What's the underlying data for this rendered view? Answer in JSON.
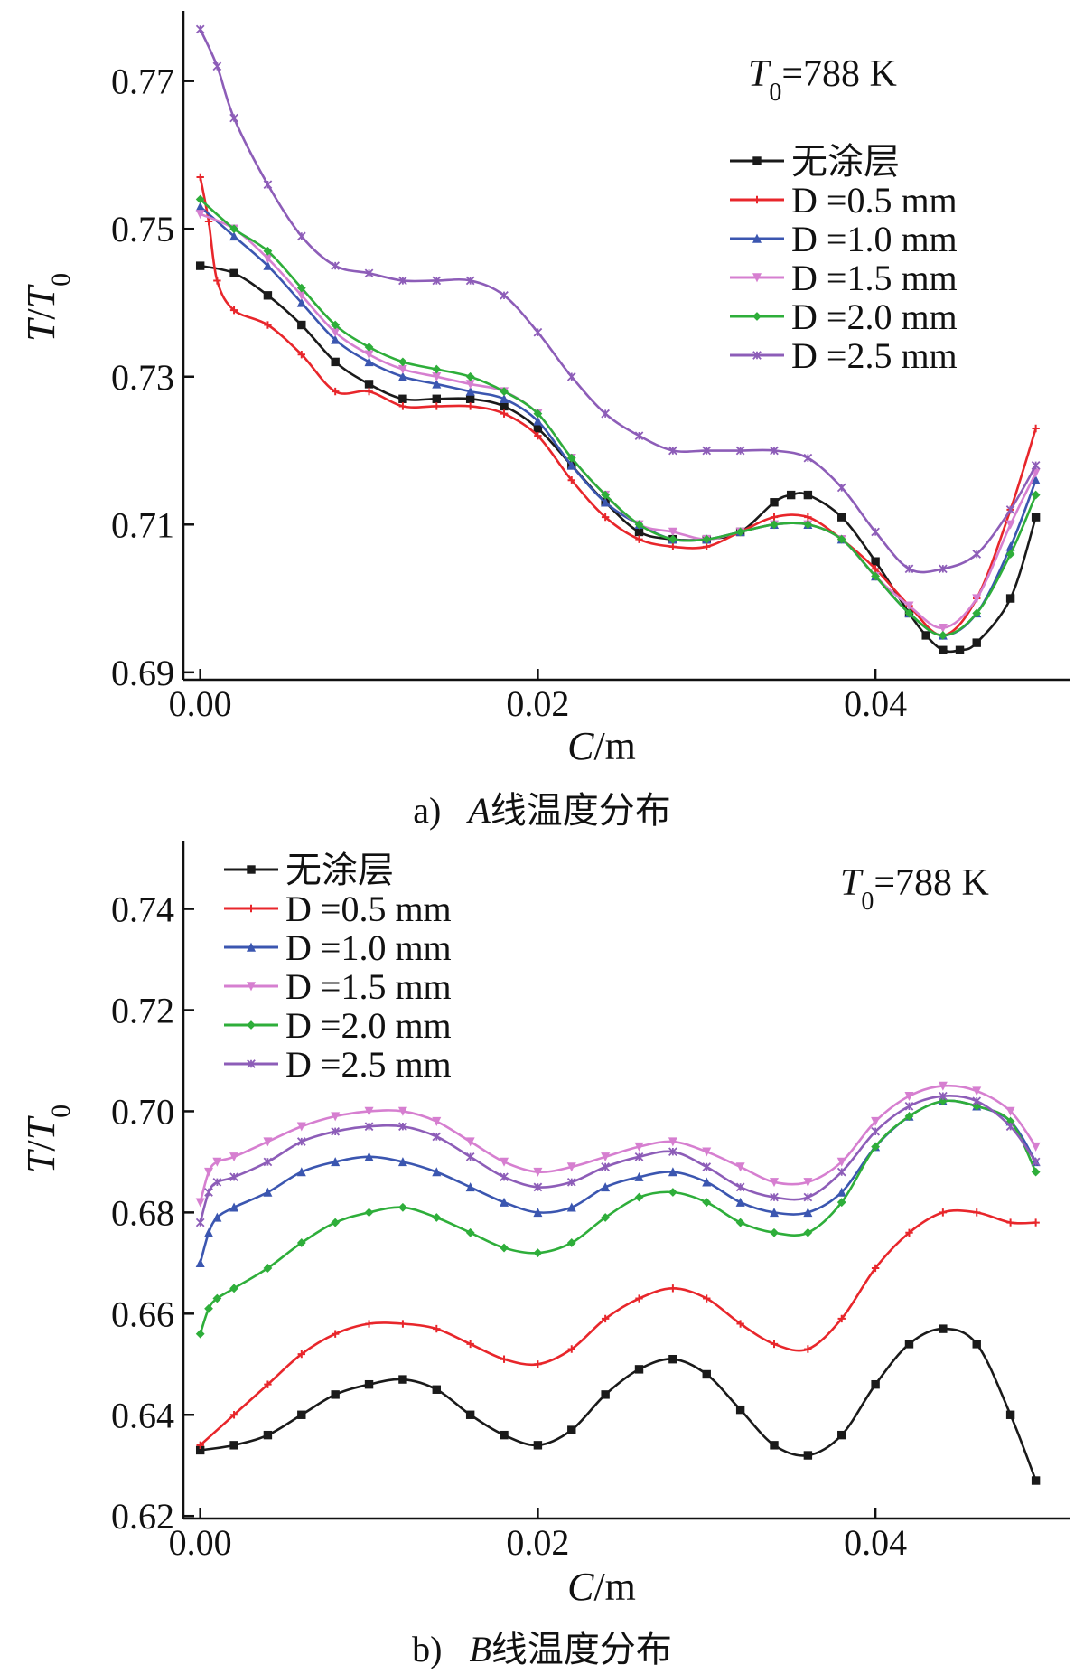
{
  "chart_data": [
    {
      "id": "a",
      "type": "line",
      "caption_prefix": "a)",
      "caption_var": "A",
      "caption_text": "线温度分布",
      "xlabel_var": "C",
      "xlabel_unit": "/m",
      "ylabel_var": "T",
      "ylabel_sep": "/",
      "ylabel_var2": "T",
      "ylabel_sub": "0",
      "annotation_var": "T",
      "annotation_sub": "0",
      "annotation_value": "=788 K",
      "xlim": [
        -0.001,
        0.0515
      ],
      "ylim": [
        0.689,
        0.7795
      ],
      "xticks": [
        0.0,
        0.02,
        0.04
      ],
      "xtick_labels": [
        "0.00",
        "0.02",
        "0.04"
      ],
      "yticks": [
        0.69,
        0.71,
        0.73,
        0.75,
        0.77
      ],
      "ytick_labels": [
        "0.69",
        "0.71",
        "0.73",
        "0.75",
        "0.77"
      ],
      "legend_position": "top-right",
      "series": [
        {
          "name": "无涂层",
          "color": "#1a1a1a",
          "marker": "square",
          "x": [
            0.0,
            0.002,
            0.004,
            0.006,
            0.008,
            0.01,
            0.012,
            0.014,
            0.016,
            0.018,
            0.02,
            0.022,
            0.024,
            0.026,
            0.028,
            0.03,
            0.032,
            0.034,
            0.035,
            0.036,
            0.038,
            0.04,
            0.042,
            0.043,
            0.044,
            0.045,
            0.046,
            0.048,
            0.0495
          ],
          "y": [
            0.745,
            0.744,
            0.741,
            0.737,
            0.732,
            0.729,
            0.727,
            0.727,
            0.727,
            0.726,
            0.723,
            0.718,
            0.713,
            0.709,
            0.708,
            0.708,
            0.709,
            0.713,
            0.714,
            0.714,
            0.711,
            0.705,
            0.698,
            0.695,
            0.693,
            0.693,
            0.694,
            0.7,
            0.711
          ]
        },
        {
          "name": "D =0.5 mm",
          "color": "#e8262b",
          "marker": "plus",
          "x": [
            0.0,
            0.0005,
            0.001,
            0.002,
            0.004,
            0.006,
            0.008,
            0.01,
            0.012,
            0.014,
            0.016,
            0.018,
            0.02,
            0.022,
            0.024,
            0.026,
            0.028,
            0.03,
            0.032,
            0.034,
            0.036,
            0.038,
            0.04,
            0.042,
            0.044,
            0.046,
            0.048,
            0.0495
          ],
          "y": [
            0.757,
            0.751,
            0.743,
            0.739,
            0.737,
            0.733,
            0.728,
            0.728,
            0.726,
            0.726,
            0.726,
            0.725,
            0.722,
            0.716,
            0.711,
            0.708,
            0.707,
            0.707,
            0.709,
            0.711,
            0.711,
            0.708,
            0.704,
            0.699,
            0.695,
            0.7,
            0.712,
            0.723
          ]
        },
        {
          "name": "D =1.0 mm",
          "color": "#3b56b0",
          "marker": "triangle",
          "x": [
            0.0,
            0.002,
            0.004,
            0.006,
            0.008,
            0.01,
            0.012,
            0.014,
            0.016,
            0.018,
            0.02,
            0.022,
            0.024,
            0.026,
            0.028,
            0.03,
            0.032,
            0.034,
            0.036,
            0.038,
            0.04,
            0.042,
            0.044,
            0.046,
            0.048,
            0.0495
          ],
          "y": [
            0.753,
            0.749,
            0.745,
            0.74,
            0.735,
            0.732,
            0.73,
            0.729,
            0.728,
            0.727,
            0.724,
            0.718,
            0.713,
            0.71,
            0.708,
            0.708,
            0.709,
            0.71,
            0.71,
            0.708,
            0.703,
            0.698,
            0.695,
            0.698,
            0.707,
            0.716
          ]
        },
        {
          "name": "D =1.5 mm",
          "color": "#d67fd0",
          "marker": "triangle-down",
          "x": [
            0.0,
            0.002,
            0.004,
            0.006,
            0.008,
            0.01,
            0.012,
            0.014,
            0.016,
            0.018,
            0.02,
            0.022,
            0.024,
            0.026,
            0.028,
            0.03,
            0.032,
            0.034,
            0.036,
            0.038,
            0.04,
            0.042,
            0.044,
            0.046,
            0.048,
            0.0495
          ],
          "y": [
            0.752,
            0.75,
            0.746,
            0.741,
            0.736,
            0.733,
            0.731,
            0.73,
            0.729,
            0.728,
            0.725,
            0.719,
            0.714,
            0.71,
            0.709,
            0.708,
            0.709,
            0.71,
            0.71,
            0.708,
            0.703,
            0.699,
            0.696,
            0.7,
            0.71,
            0.717
          ]
        },
        {
          "name": "D =2.0 mm",
          "color": "#2eae3a",
          "marker": "diamond",
          "x": [
            0.0,
            0.002,
            0.004,
            0.006,
            0.008,
            0.01,
            0.012,
            0.014,
            0.016,
            0.018,
            0.02,
            0.022,
            0.024,
            0.026,
            0.028,
            0.03,
            0.032,
            0.034,
            0.036,
            0.038,
            0.04,
            0.042,
            0.044,
            0.046,
            0.048,
            0.0495
          ],
          "y": [
            0.754,
            0.75,
            0.747,
            0.742,
            0.737,
            0.734,
            0.732,
            0.731,
            0.73,
            0.728,
            0.725,
            0.719,
            0.714,
            0.71,
            0.708,
            0.708,
            0.709,
            0.71,
            0.71,
            0.708,
            0.703,
            0.698,
            0.695,
            0.698,
            0.706,
            0.714
          ]
        },
        {
          "name": "D =2.5 mm",
          "color": "#8d5db8",
          "marker": "star",
          "x": [
            0.0,
            0.001,
            0.002,
            0.004,
            0.006,
            0.008,
            0.01,
            0.012,
            0.014,
            0.016,
            0.018,
            0.02,
            0.022,
            0.024,
            0.026,
            0.028,
            0.03,
            0.032,
            0.034,
            0.036,
            0.038,
            0.04,
            0.042,
            0.044,
            0.046,
            0.048,
            0.0495
          ],
          "y": [
            0.777,
            0.772,
            0.765,
            0.756,
            0.749,
            0.745,
            0.744,
            0.743,
            0.743,
            0.743,
            0.741,
            0.736,
            0.73,
            0.725,
            0.722,
            0.72,
            0.72,
            0.72,
            0.72,
            0.719,
            0.715,
            0.709,
            0.704,
            0.704,
            0.706,
            0.712,
            0.718
          ]
        }
      ]
    },
    {
      "id": "b",
      "type": "line",
      "caption_prefix": "b)",
      "caption_var": "B",
      "caption_text": "线温度分布",
      "xlabel_var": "C",
      "xlabel_unit": "/m",
      "ylabel_var": "T",
      "ylabel_sep": "/",
      "ylabel_var2": "T",
      "ylabel_sub": "0",
      "annotation_var": "T",
      "annotation_sub": "0",
      "annotation_value": "=788 K",
      "xlim": [
        -0.001,
        0.0515
      ],
      "ylim": [
        0.6195,
        0.7535
      ],
      "xticks": [
        0.0,
        0.02,
        0.04
      ],
      "xtick_labels": [
        "0.00",
        "0.02",
        "0.04"
      ],
      "yticks": [
        0.62,
        0.64,
        0.66,
        0.68,
        0.7,
        0.72,
        0.74
      ],
      "ytick_labels": [
        "0.62",
        "0.64",
        "0.66",
        "0.68",
        "0.70",
        "0.72",
        "0.74"
      ],
      "legend_position": "top-left",
      "series": [
        {
          "name": "无涂层",
          "color": "#1a1a1a",
          "marker": "square",
          "x": [
            0.0,
            0.002,
            0.004,
            0.006,
            0.008,
            0.01,
            0.012,
            0.014,
            0.016,
            0.018,
            0.02,
            0.022,
            0.024,
            0.026,
            0.028,
            0.03,
            0.032,
            0.034,
            0.036,
            0.038,
            0.04,
            0.042,
            0.044,
            0.046,
            0.048,
            0.0495
          ],
          "y": [
            0.633,
            0.634,
            0.636,
            0.64,
            0.644,
            0.646,
            0.647,
            0.645,
            0.64,
            0.636,
            0.634,
            0.637,
            0.644,
            0.649,
            0.651,
            0.648,
            0.641,
            0.634,
            0.632,
            0.636,
            0.646,
            0.654,
            0.657,
            0.654,
            0.64,
            0.627
          ]
        },
        {
          "name": "D =0.5 mm",
          "color": "#e8262b",
          "marker": "plus",
          "x": [
            0.0,
            0.002,
            0.004,
            0.006,
            0.008,
            0.01,
            0.012,
            0.014,
            0.016,
            0.018,
            0.02,
            0.022,
            0.024,
            0.026,
            0.028,
            0.03,
            0.032,
            0.034,
            0.036,
            0.038,
            0.04,
            0.042,
            0.044,
            0.046,
            0.048,
            0.0495
          ],
          "y": [
            0.634,
            0.64,
            0.646,
            0.652,
            0.656,
            0.658,
            0.658,
            0.657,
            0.654,
            0.651,
            0.65,
            0.653,
            0.659,
            0.663,
            0.665,
            0.663,
            0.658,
            0.654,
            0.653,
            0.659,
            0.669,
            0.676,
            0.68,
            0.68,
            0.678,
            0.678
          ]
        },
        {
          "name": "D =1.0 mm",
          "color": "#3b56b0",
          "marker": "triangle",
          "x": [
            0.0,
            0.0005,
            0.001,
            0.002,
            0.004,
            0.006,
            0.008,
            0.01,
            0.012,
            0.014,
            0.016,
            0.018,
            0.02,
            0.022,
            0.024,
            0.026,
            0.028,
            0.03,
            0.032,
            0.034,
            0.036,
            0.038,
            0.04,
            0.042,
            0.044,
            0.046,
            0.048,
            0.0495
          ],
          "y": [
            0.67,
            0.676,
            0.679,
            0.681,
            0.684,
            0.688,
            0.69,
            0.691,
            0.69,
            0.688,
            0.685,
            0.682,
            0.68,
            0.681,
            0.685,
            0.687,
            0.688,
            0.686,
            0.682,
            0.68,
            0.68,
            0.684,
            0.693,
            0.699,
            0.702,
            0.701,
            0.698,
            0.69
          ]
        },
        {
          "name": "D =1.5 mm",
          "color": "#d67fd0",
          "marker": "triangle-down",
          "x": [
            0.0,
            0.0005,
            0.001,
            0.002,
            0.004,
            0.006,
            0.008,
            0.01,
            0.012,
            0.014,
            0.016,
            0.018,
            0.02,
            0.022,
            0.024,
            0.026,
            0.028,
            0.03,
            0.032,
            0.034,
            0.036,
            0.038,
            0.04,
            0.042,
            0.044,
            0.046,
            0.048,
            0.0495
          ],
          "y": [
            0.682,
            0.688,
            0.69,
            0.691,
            0.694,
            0.697,
            0.699,
            0.7,
            0.7,
            0.698,
            0.694,
            0.69,
            0.688,
            0.689,
            0.691,
            0.693,
            0.694,
            0.692,
            0.689,
            0.686,
            0.686,
            0.69,
            0.698,
            0.703,
            0.705,
            0.704,
            0.7,
            0.693
          ]
        },
        {
          "name": "D =2.0 mm",
          "color": "#2eae3a",
          "marker": "diamond",
          "x": [
            0.0,
            0.0005,
            0.001,
            0.002,
            0.004,
            0.006,
            0.008,
            0.01,
            0.012,
            0.014,
            0.016,
            0.018,
            0.02,
            0.022,
            0.024,
            0.026,
            0.028,
            0.03,
            0.032,
            0.034,
            0.036,
            0.038,
            0.04,
            0.042,
            0.044,
            0.046,
            0.048,
            0.0495
          ],
          "y": [
            0.656,
            0.661,
            0.663,
            0.665,
            0.669,
            0.674,
            0.678,
            0.68,
            0.681,
            0.679,
            0.676,
            0.673,
            0.672,
            0.674,
            0.679,
            0.683,
            0.684,
            0.682,
            0.678,
            0.676,
            0.676,
            0.682,
            0.693,
            0.699,
            0.702,
            0.701,
            0.698,
            0.688
          ]
        },
        {
          "name": "D =2.5 mm",
          "color": "#8d5db8",
          "marker": "star",
          "x": [
            0.0,
            0.0005,
            0.001,
            0.002,
            0.004,
            0.006,
            0.008,
            0.01,
            0.012,
            0.014,
            0.016,
            0.018,
            0.02,
            0.022,
            0.024,
            0.026,
            0.028,
            0.03,
            0.032,
            0.034,
            0.036,
            0.038,
            0.04,
            0.042,
            0.044,
            0.046,
            0.048,
            0.0495
          ],
          "y": [
            0.678,
            0.684,
            0.686,
            0.687,
            0.69,
            0.694,
            0.696,
            0.697,
            0.697,
            0.695,
            0.691,
            0.687,
            0.685,
            0.686,
            0.689,
            0.691,
            0.692,
            0.689,
            0.685,
            0.683,
            0.683,
            0.688,
            0.696,
            0.701,
            0.703,
            0.702,
            0.697,
            0.69
          ]
        }
      ]
    }
  ]
}
